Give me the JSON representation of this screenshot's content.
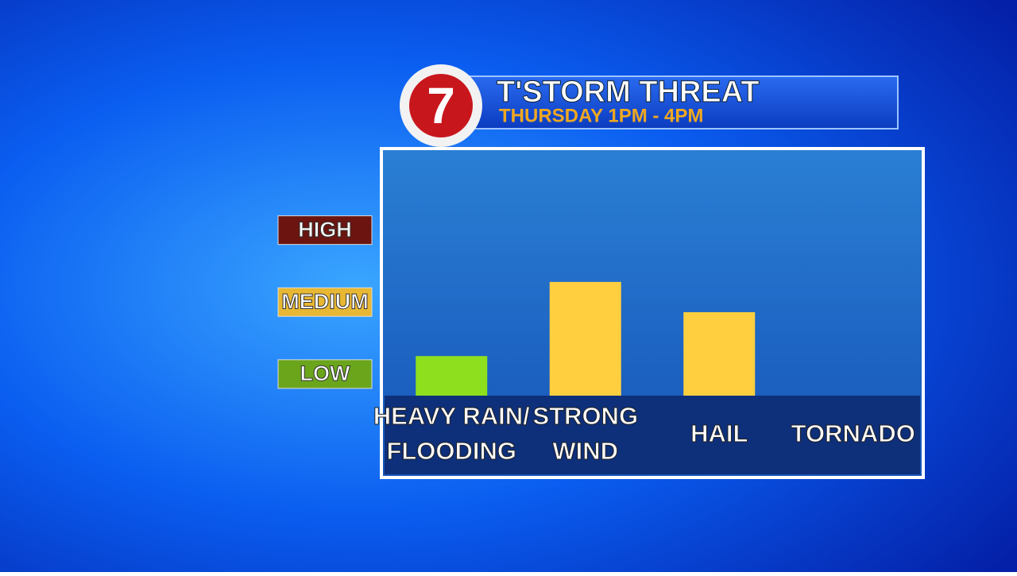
{
  "logo": "7",
  "chart_data": {
    "type": "bar",
    "title": "T'STORM THREAT",
    "subtitle": "THURSDAY 1PM - 4PM",
    "categories": [
      [
        "HEAVY RAIN/",
        "FLOODING"
      ],
      [
        "STRONG",
        "WIND"
      ],
      [
        "HAIL"
      ],
      [
        "TORNADO"
      ]
    ],
    "values": [
      1.25,
      2.28,
      1.86,
      null
    ],
    "colors": [
      "#8ee01e",
      "#ffcf40",
      "#ffcf40",
      "#ffcf40"
    ],
    "ylim": [
      0.7,
      4.1
    ],
    "yticks": [
      {
        "value": 1,
        "label": "LOW"
      },
      {
        "value": 2,
        "label": "MEDIUM"
      },
      {
        "value": 3,
        "label": "HIGH"
      }
    ],
    "ytick_colors": [
      "#6aa51c",
      "#e8b733",
      "#6b1410"
    ],
    "grid": false
  }
}
